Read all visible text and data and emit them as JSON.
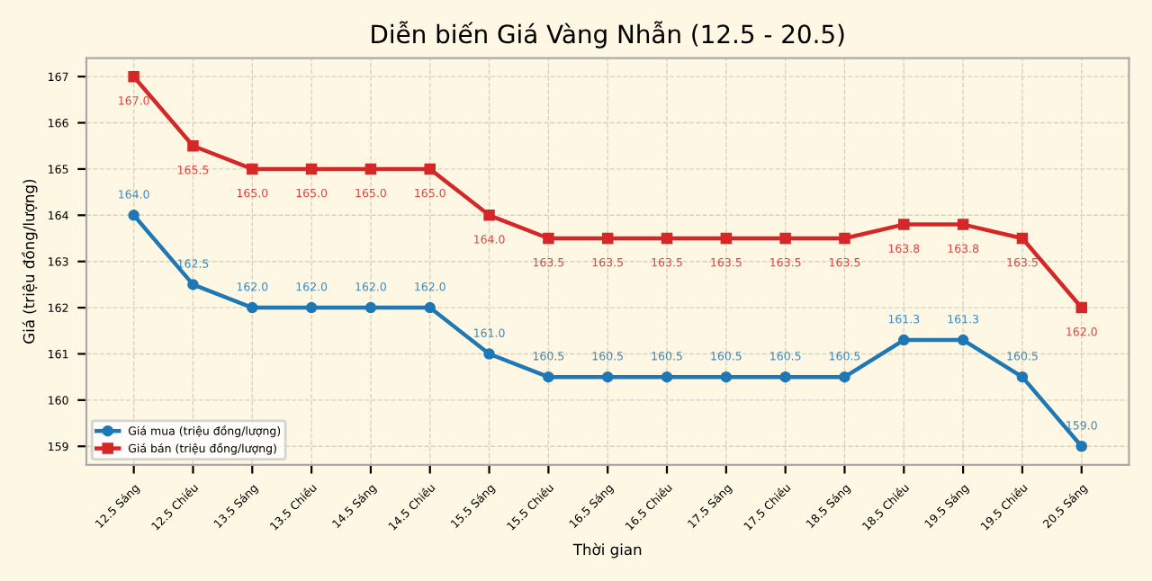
{
  "chart_data": {
    "type": "line",
    "title": "Diễn biến Giá Vàng Nhẫn (12.5 - 20.5)",
    "xlabel": "Thời gian",
    "ylabel": "Giá (triệu đồng/lượng)",
    "categories": [
      "12.5 Sáng",
      "12.5 Chiều",
      "13.5 Sáng",
      "13.5 Chiều",
      "14.5 Sáng",
      "14.5 Chiều",
      "15.5 Sáng",
      "15.5 Chiều",
      "16.5 Sáng",
      "16.5 Chiều",
      "17.5 Sáng",
      "17.5 Chiều",
      "18.5 Sáng",
      "18.5 Chiều",
      "19.5 Sáng",
      "19.5 Chiều",
      "20.5 Sáng"
    ],
    "series": [
      {
        "name": "Giá mua (triệu đồng/lượng)",
        "color": "#1f77b4",
        "marker": "circle",
        "values": [
          164.0,
          162.5,
          162.0,
          162.0,
          162.0,
          162.0,
          161.0,
          160.5,
          160.5,
          160.5,
          160.5,
          160.5,
          160.5,
          161.3,
          161.3,
          160.5,
          159.0
        ],
        "value_labels": [
          "164.0",
          "162.5",
          "162.0",
          "162.0",
          "162.0",
          "162.0",
          "161.0",
          "160.5",
          "160.5",
          "160.5",
          "160.5",
          "160.5",
          "160.5",
          "161.3",
          "161.3",
          "160.5",
          "159.0"
        ]
      },
      {
        "name": "Giá bán (triệu đồng/lượng)",
        "color": "#d62728",
        "marker": "square",
        "values": [
          167.0,
          165.5,
          165.0,
          165.0,
          165.0,
          165.0,
          164.0,
          163.5,
          163.5,
          163.5,
          163.5,
          163.5,
          163.5,
          163.8,
          163.8,
          163.5,
          162.0
        ],
        "value_labels": [
          "167.0",
          "165.5",
          "165.0",
          "165.0",
          "165.0",
          "165.0",
          "164.0",
          "163.5",
          "163.5",
          "163.5",
          "163.5",
          "163.5",
          "163.5",
          "163.8",
          "163.8",
          "163.5",
          "162.0"
        ]
      }
    ],
    "ylim": [
      158.6,
      167.4
    ],
    "yticks": [
      159,
      160,
      161,
      162,
      163,
      164,
      165,
      166,
      167
    ],
    "grid": true,
    "legend": "bottom left",
    "line_style": "solid"
  }
}
